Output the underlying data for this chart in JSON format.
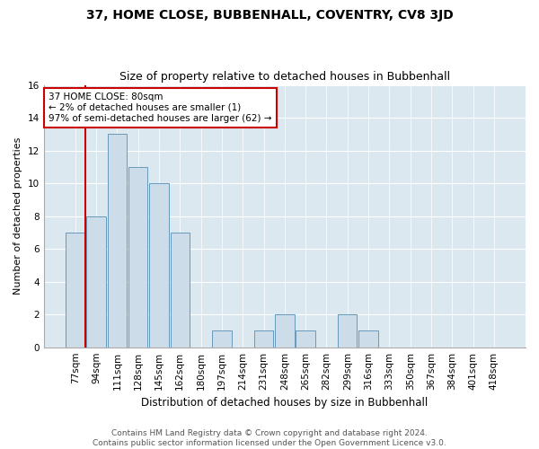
{
  "title": "37, HOME CLOSE, BUBBENHALL, COVENTRY, CV8 3JD",
  "subtitle": "Size of property relative to detached houses in Bubbenhall",
  "xlabel": "Distribution of detached houses by size in Bubbenhall",
  "ylabel": "Number of detached properties",
  "categories": [
    "77sqm",
    "94sqm",
    "111sqm",
    "128sqm",
    "145sqm",
    "162sqm",
    "180sqm",
    "197sqm",
    "214sqm",
    "231sqm",
    "248sqm",
    "265sqm",
    "282sqm",
    "299sqm",
    "316sqm",
    "333sqm",
    "350sqm",
    "367sqm",
    "384sqm",
    "401sqm",
    "418sqm"
  ],
  "values": [
    7,
    8,
    13,
    11,
    10,
    7,
    0,
    1,
    0,
    1,
    2,
    1,
    0,
    2,
    1,
    0,
    0,
    0,
    0,
    0,
    0
  ],
  "bar_color": "#ccdce8",
  "bar_edge_color": "#6699bb",
  "background_color": "#dce8f0",
  "grid_color": "#ffffff",
  "annotation_text": "37 HOME CLOSE: 80sqm\n← 2% of detached houses are smaller (1)\n97% of semi-detached houses are larger (62) →",
  "annotation_box_color": "#ffffff",
  "annotation_box_edge_color": "#cc0000",
  "property_line_color": "#cc0000",
  "property_line_x": 0.47,
  "ylim": [
    0,
    16
  ],
  "yticks": [
    0,
    2,
    4,
    6,
    8,
    10,
    12,
    14,
    16
  ],
  "footer_line1": "Contains HM Land Registry data © Crown copyright and database right 2024.",
  "footer_line2": "Contains public sector information licensed under the Open Government Licence v3.0.",
  "title_fontsize": 10,
  "subtitle_fontsize": 9,
  "xlabel_fontsize": 8.5,
  "ylabel_fontsize": 8,
  "tick_fontsize": 7.5,
  "footer_fontsize": 6.5,
  "annotation_fontsize": 7.5
}
